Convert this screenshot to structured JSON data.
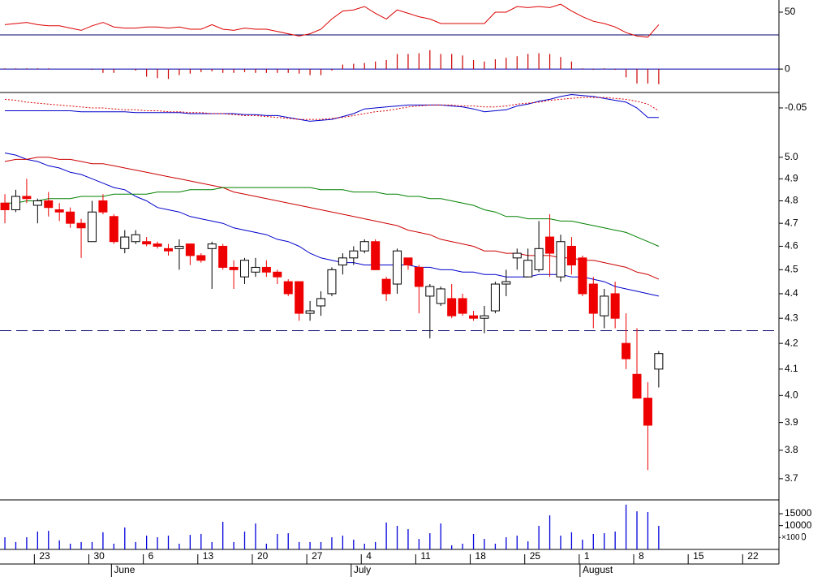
{
  "chart_data": {
    "type": "candlestick",
    "xlim": [
      -0.45,
      71.03
    ],
    "xticks": [
      {
        "value": 3,
        "label": "23"
      },
      {
        "value": 8,
        "label": "30"
      },
      {
        "value": 13,
        "label": "6"
      },
      {
        "value": 18,
        "label": "13"
      },
      {
        "value": 23,
        "label": "20"
      },
      {
        "value": 28,
        "label": "27"
      },
      {
        "value": 33,
        "label": "4"
      },
      {
        "value": 38,
        "label": "11"
      },
      {
        "value": 43,
        "label": "18"
      },
      {
        "value": 48,
        "label": "25"
      },
      {
        "value": 53,
        "label": "1"
      },
      {
        "value": 58,
        "label": "8"
      },
      {
        "value": 63,
        "label": "15"
      },
      {
        "value": 68,
        "label": "22"
      }
    ],
    "month_ticks": [
      {
        "value": 10,
        "label": "June"
      },
      {
        "value": 32,
        "label": "July"
      },
      {
        "value": 53,
        "label": "August"
      }
    ],
    "price": {
      "log": true,
      "ylim": [
        3.63,
        5.13
      ],
      "yticks": [
        3.7,
        3.8,
        3.9,
        {
          "value": 4,
          "label": "4.0"
        },
        4.1,
        4.2,
        4.3,
        4.4,
        4.5,
        4.6,
        4.7,
        4.8,
        4.9,
        {
          "value": 5,
          "label": "5.0"
        }
      ],
      "up_color": "#ffffff",
      "down_color": "#ee0000",
      "reference_line": 4.25,
      "open": [
        4.79,
        4.76,
        4.82,
        4.78,
        4.8,
        4.76,
        4.75,
        4.7,
        4.62,
        4.8,
        4.73,
        4.59,
        4.62,
        4.62,
        4.61,
        4.59,
        4.59,
        4.61,
        4.56,
        4.59,
        4.6,
        4.51,
        4.47,
        4.49,
        4.51,
        4.49,
        4.45,
        4.45,
        4.32,
        4.35,
        4.4,
        4.52,
        4.55,
        4.58,
        4.62,
        4.46,
        4.44,
        4.55,
        4.51,
        4.39,
        4.36,
        4.38,
        4.38,
        4.31,
        4.3,
        4.33,
        4.44,
        4.55,
        4.47,
        4.5,
        4.64,
        4.47,
        4.6,
        4.55,
        4.44,
        4.31,
        4.4,
        4.2,
        4.08,
        3.99,
        4.1
      ],
      "high": [
        4.83,
        4.85,
        4.9,
        4.81,
        4.84,
        4.79,
        4.77,
        4.72,
        4.8,
        4.83,
        4.74,
        4.67,
        4.67,
        4.64,
        4.62,
        4.61,
        4.63,
        4.61,
        4.57,
        4.62,
        4.61,
        4.54,
        4.55,
        4.55,
        4.54,
        4.5,
        4.46,
        4.45,
        4.37,
        4.41,
        4.51,
        4.57,
        4.6,
        4.63,
        4.63,
        4.47,
        4.59,
        4.55,
        4.52,
        4.44,
        4.43,
        4.44,
        4.4,
        4.33,
        4.35,
        4.45,
        4.5,
        4.59,
        4.59,
        4.71,
        4.74,
        4.65,
        4.64,
        4.56,
        4.47,
        4.42,
        4.45,
        4.32,
        4.26,
        4.05,
        4.17
      ],
      "low": [
        4.7,
        4.75,
        4.79,
        4.7,
        4.73,
        4.71,
        4.68,
        4.55,
        4.62,
        4.74,
        4.61,
        4.57,
        4.61,
        4.6,
        4.59,
        4.56,
        4.5,
        4.52,
        4.53,
        4.42,
        4.5,
        4.42,
        4.44,
        4.47,
        4.47,
        4.44,
        4.39,
        4.29,
        4.29,
        4.31,
        4.39,
        4.48,
        4.52,
        4.57,
        4.5,
        4.37,
        4.4,
        4.5,
        4.32,
        4.22,
        4.35,
        4.3,
        4.31,
        4.29,
        4.24,
        4.32,
        4.39,
        4.5,
        4.47,
        4.49,
        4.47,
        4.45,
        4.48,
        4.39,
        4.26,
        4.26,
        4.26,
        4.1,
        3.99,
        3.73,
        4.03
      ],
      "close": [
        4.76,
        4.82,
        4.81,
        4.8,
        4.77,
        4.75,
        4.7,
        4.68,
        4.75,
        4.75,
        4.62,
        4.64,
        4.65,
        4.61,
        4.6,
        4.58,
        4.6,
        4.56,
        4.54,
        4.61,
        4.51,
        4.5,
        4.54,
        4.51,
        4.49,
        4.47,
        4.4,
        4.32,
        4.33,
        4.38,
        4.5,
        4.55,
        4.58,
        4.62,
        4.5,
        4.4,
        4.58,
        4.52,
        4.43,
        4.43,
        4.42,
        4.31,
        4.32,
        4.3,
        4.31,
        4.44,
        4.45,
        4.57,
        4.54,
        4.59,
        4.57,
        4.62,
        4.52,
        4.4,
        4.32,
        4.39,
        4.3,
        4.14,
        3.99,
        3.89,
        4.16
      ],
      "moving_averages": [
        {
          "color": "#0000cc",
          "values": [
            5.02,
            5.01,
            4.99,
            4.98,
            4.96,
            4.95,
            4.93,
            4.92,
            4.9,
            4.88,
            4.86,
            4.85,
            4.82,
            4.8,
            4.77,
            4.76,
            4.75,
            4.73,
            4.72,
            4.71,
            4.7,
            4.68,
            4.67,
            4.66,
            4.65,
            4.63,
            4.62,
            4.6,
            4.57,
            4.55,
            4.54,
            4.53,
            4.53,
            4.52,
            4.52,
            4.52,
            4.52,
            4.52,
            4.51,
            4.51,
            4.5,
            4.5,
            4.49,
            4.49,
            4.48,
            4.48,
            4.47,
            4.47,
            4.47,
            4.48,
            4.48,
            4.48,
            4.47,
            4.47,
            4.46,
            4.45,
            4.43,
            4.42,
            4.41,
            4.4,
            4.39
          ]
        },
        {
          "color": "#cc0000",
          "values": [
            4.98,
            4.99,
            4.99,
            5.0,
            5.0,
            4.99,
            4.99,
            4.98,
            4.97,
            4.97,
            4.96,
            4.95,
            4.94,
            4.93,
            4.92,
            4.91,
            4.9,
            4.89,
            4.88,
            4.87,
            4.86,
            4.84,
            4.83,
            4.82,
            4.81,
            4.8,
            4.79,
            4.78,
            4.77,
            4.76,
            4.75,
            4.74,
            4.73,
            4.72,
            4.71,
            4.7,
            4.69,
            4.67,
            4.66,
            4.65,
            4.63,
            4.62,
            4.61,
            4.6,
            4.58,
            4.58,
            4.57,
            4.57,
            4.56,
            4.56,
            4.56,
            4.55,
            4.55,
            4.54,
            4.54,
            4.53,
            4.52,
            4.51,
            4.49,
            4.48,
            4.46
          ]
        },
        {
          "color": "#008000",
          "values": [
            4.79,
            4.79,
            4.8,
            4.8,
            4.81,
            4.81,
            4.81,
            4.82,
            4.82,
            4.82,
            4.83,
            4.83,
            4.83,
            4.83,
            4.84,
            4.84,
            4.84,
            4.85,
            4.85,
            4.85,
            4.86,
            4.86,
            4.86,
            4.86,
            4.86,
            4.86,
            4.86,
            4.86,
            4.86,
            4.85,
            4.85,
            4.85,
            4.84,
            4.84,
            4.84,
            4.83,
            4.83,
            4.82,
            4.82,
            4.81,
            4.81,
            4.8,
            4.79,
            4.78,
            4.76,
            4.75,
            4.73,
            4.73,
            4.72,
            4.72,
            4.72,
            4.71,
            4.71,
            4.7,
            4.69,
            4.68,
            4.67,
            4.66,
            4.64,
            4.62,
            4.6
          ]
        }
      ]
    },
    "rsi": {
      "color": "#dd0000",
      "ylim": [
        25,
        60.7
      ],
      "yticks": [
        50
      ],
      "reference_line": 30,
      "values": [
        39,
        40,
        41,
        39,
        38,
        38,
        36,
        34,
        38,
        41,
        37,
        36,
        36,
        37,
        37,
        36,
        37,
        35,
        35,
        39,
        35,
        34,
        36,
        35,
        35,
        33,
        31,
        29,
        31,
        35,
        44,
        51,
        52,
        55,
        49,
        44,
        52,
        49,
        46,
        44,
        40,
        40,
        40,
        40,
        40,
        50,
        50,
        55,
        54,
        55,
        54,
        57,
        51,
        46,
        42,
        40,
        37,
        32,
        29,
        28,
        39
      ]
    },
    "histogram": {
      "color": "#cc0000",
      "ylim": [
        -0.032,
        0.043
      ],
      "yticks": [
        0
      ],
      "values": [
        0.001,
        0.001,
        0.001,
        0.001,
        0.001,
        0,
        0,
        0,
        -0.001,
        -0.005,
        -0.005,
        0,
        -0.002,
        -0.01,
        -0.012,
        -0.013,
        -0.008,
        -0.006,
        -0.004,
        -0.003,
        -0.005,
        -0.005,
        -0.004,
        -0.005,
        -0.005,
        -0.005,
        -0.005,
        -0.006,
        -0.008,
        -0.008,
        -0.002,
        0.006,
        0.007,
        0.008,
        0.01,
        0.012,
        0.02,
        0.02,
        0.021,
        0.025,
        0.02,
        0.02,
        0.018,
        0.012,
        0.01,
        0.013,
        0.015,
        0.017,
        0.02,
        0.021,
        0.02,
        0.016,
        0.01,
        0.001,
        -0.001,
        0.001,
        -0.001,
        -0.011,
        -0.019,
        -0.019,
        -0.02
      ]
    },
    "macd": {
      "ylim": [
        -0.073,
        -0.033
      ],
      "yticks": [
        -0.05
      ],
      "series": [
        {
          "color": "#0000cc",
          "values": [
            -0.053,
            -0.053,
            -0.053,
            -0.053,
            -0.053,
            -0.053,
            -0.053,
            -0.054,
            -0.054,
            -0.054,
            -0.054,
            -0.054,
            -0.055,
            -0.055,
            -0.055,
            -0.055,
            -0.055,
            -0.056,
            -0.056,
            -0.056,
            -0.056,
            -0.056,
            -0.057,
            -0.057,
            -0.058,
            -0.058,
            -0.06,
            -0.062,
            -0.064,
            -0.063,
            -0.062,
            -0.059,
            -0.056,
            -0.051,
            -0.05,
            -0.049,
            -0.048,
            -0.047,
            -0.047,
            -0.047,
            -0.047,
            -0.048,
            -0.049,
            -0.051,
            -0.054,
            -0.053,
            -0.052,
            -0.048,
            -0.046,
            -0.043,
            -0.041,
            -0.038,
            -0.036,
            -0.037,
            -0.038,
            -0.04,
            -0.042,
            -0.044,
            -0.05,
            -0.06,
            -0.06
          ]
        },
        {
          "color": "#dd0000",
          "dashed": true,
          "values": [
            -0.041,
            -0.042,
            -0.044,
            -0.045,
            -0.046,
            -0.047,
            -0.048,
            -0.049,
            -0.05,
            -0.05,
            -0.051,
            -0.052,
            -0.052,
            -0.053,
            -0.053,
            -0.054,
            -0.054,
            -0.055,
            -0.055,
            -0.056,
            -0.056,
            -0.057,
            -0.058,
            -0.058,
            -0.059,
            -0.06,
            -0.061,
            -0.062,
            -0.062,
            -0.062,
            -0.061,
            -0.06,
            -0.058,
            -0.056,
            -0.054,
            -0.053,
            -0.051,
            -0.049,
            -0.048,
            -0.047,
            -0.047,
            -0.047,
            -0.048,
            -0.048,
            -0.049,
            -0.049,
            -0.048,
            -0.046,
            -0.045,
            -0.044,
            -0.042,
            -0.041,
            -0.04,
            -0.039,
            -0.039,
            -0.039,
            -0.04,
            -0.041,
            -0.043,
            -0.046,
            -0.053
          ]
        }
      ]
    },
    "volume": {
      "color": "#0000dd",
      "ylim": [
        0,
        20450
      ],
      "yticks": [
        5000,
        10000,
        15000
      ],
      "unit_label": "×100",
      "values": [
        5100,
        3100,
        5100,
        7500,
        7800,
        3800,
        2400,
        3100,
        3100,
        7200,
        2400,
        9200,
        3100,
        5800,
        5100,
        5800,
        2400,
        6100,
        6500,
        3100,
        11600,
        3100,
        7500,
        10900,
        2400,
        6500,
        6800,
        3100,
        3100,
        3100,
        5100,
        5800,
        4100,
        2400,
        3100,
        11300,
        9900,
        8500,
        4400,
        6800,
        10900,
        1700,
        2400,
        6500,
        4400,
        2400,
        5100,
        5800,
        3400,
        9900,
        14300,
        5800,
        7200,
        4100,
        6500,
        6800,
        7500,
        18800,
        16000,
        15700,
        9900
      ]
    }
  }
}
